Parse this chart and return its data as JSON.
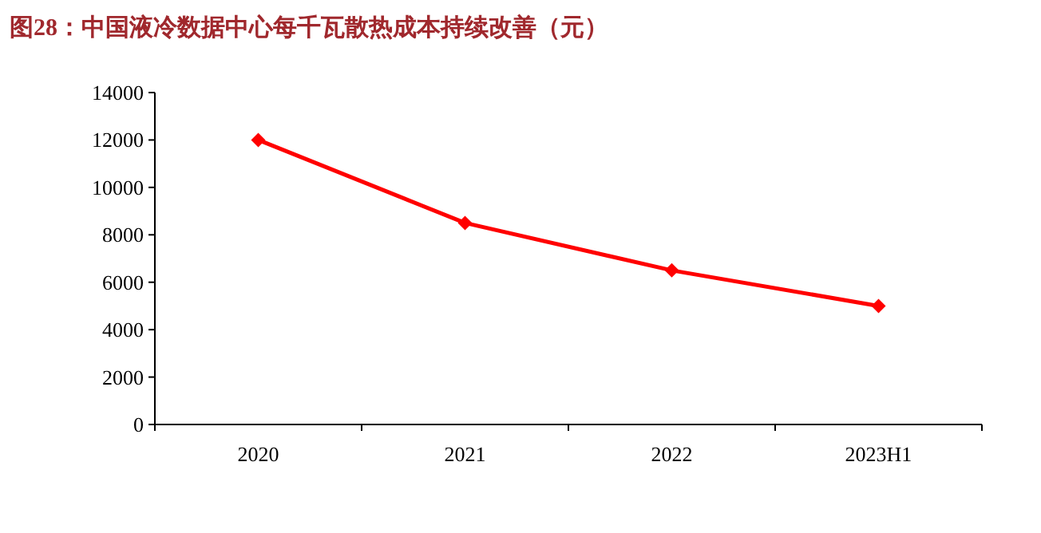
{
  "chart_data": {
    "type": "line",
    "title": "图28：中国液冷数据中心每千瓦散热成本持续改善（元）",
    "categories": [
      "2020",
      "2021",
      "2022",
      "2023H1"
    ],
    "series": [
      {
        "color": "#ff0000",
        "values": [
          12000,
          8500,
          6500,
          5000
        ]
      }
    ],
    "ylim": [
      0,
      14000
    ],
    "yticks": [
      0,
      2000,
      4000,
      6000,
      8000,
      10000,
      12000,
      14000
    ],
    "marker": "diamond",
    "line_style": "solid",
    "grid": false
  }
}
